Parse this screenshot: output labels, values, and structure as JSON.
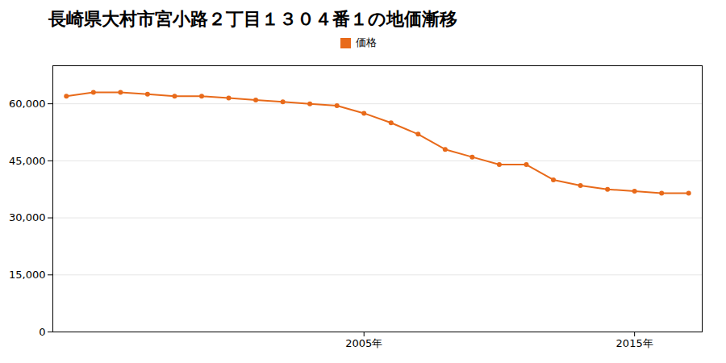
{
  "chart_data": {
    "type": "line",
    "title": "長崎県大村市宮小路２丁目１３０４番１の地価漸移",
    "x": [
      1994,
      1995,
      1996,
      1997,
      1998,
      1999,
      2000,
      2001,
      2002,
      2003,
      2004,
      2005,
      2006,
      2007,
      2008,
      2009,
      2010,
      2011,
      2012,
      2013,
      2014,
      2015,
      2016,
      2017
    ],
    "series": [
      {
        "name": "価格",
        "color": "#E86A1A",
        "marker": "circle",
        "values": [
          62000,
          63000,
          63000,
          62500,
          62000,
          62000,
          61500,
          61000,
          60500,
          60000,
          59500,
          57500,
          55000,
          52000,
          48000,
          46000,
          44000,
          44000,
          40000,
          38500,
          37500,
          37000,
          36500,
          36500
        ]
      }
    ],
    "xlim": [
      1993.5,
      2017.5
    ],
    "xticks": [
      {
        "value": 2005,
        "label": "2005年"
      },
      {
        "value": 2015,
        "label": "2015年"
      }
    ],
    "ylim": [
      0,
      70000
    ],
    "yticks": [
      0,
      {
        "value": 15000,
        "label": "15,000"
      },
      {
        "value": 30000,
        "label": "30,000"
      },
      {
        "value": 45000,
        "label": "45,000"
      },
      {
        "value": 60000,
        "label": "60,000"
      }
    ],
    "grid": "y",
    "legend": "top"
  }
}
